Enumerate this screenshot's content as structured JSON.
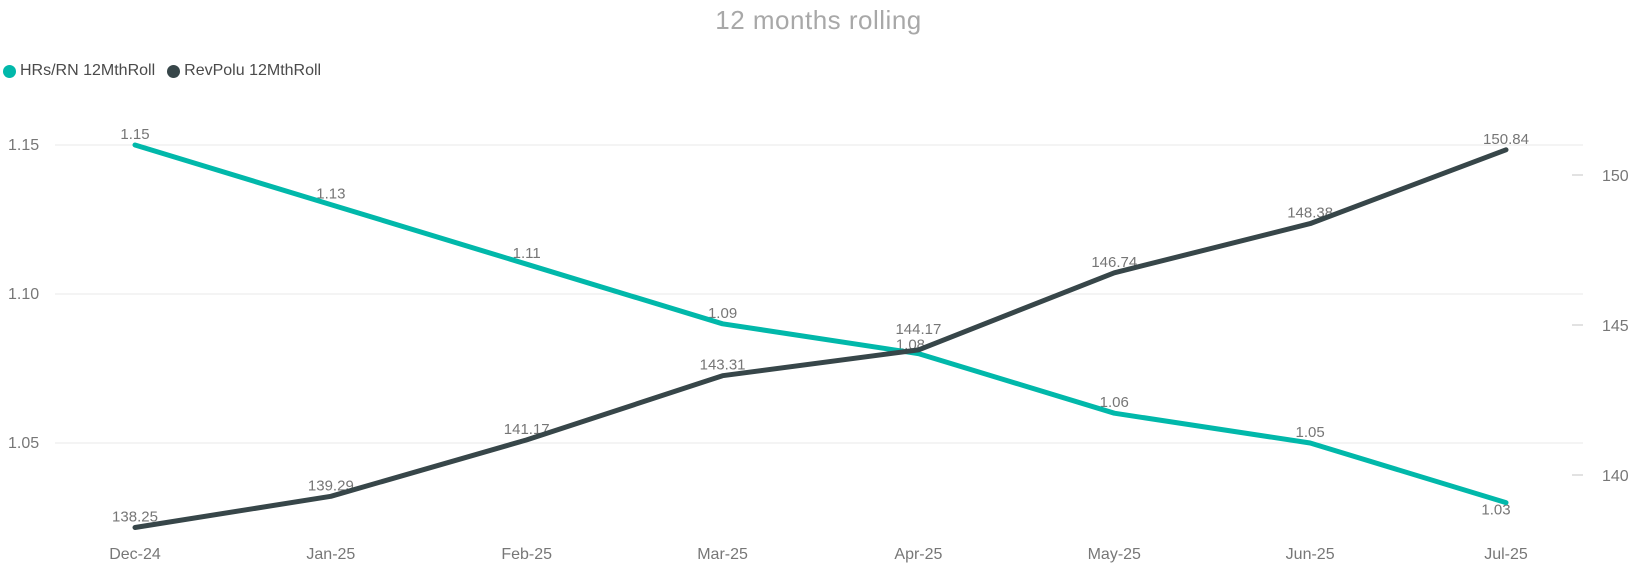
{
  "title": "12 months rolling",
  "legend": {
    "position": "top-left",
    "items": [
      {
        "label": "HRs/RN 12MthRoll",
        "color": "#01B8AA"
      },
      {
        "label": "RevPolu 12MthRoll",
        "color": "#374649"
      }
    ]
  },
  "chart_data": {
    "type": "line",
    "title": "12 months rolling",
    "categories": [
      "Dec-24",
      "Jan-25",
      "Feb-25",
      "Mar-25",
      "Apr-25",
      "May-25",
      "Jun-25",
      "Jul-25"
    ],
    "series": [
      {
        "name": "HRs/RN 12MthRoll",
        "color": "#01B8AA",
        "axis": "left",
        "values": [
          1.15,
          1.13,
          1.11,
          1.09,
          1.08,
          1.06,
          1.05,
          1.03
        ]
      },
      {
        "name": "RevPolu 12MthRoll",
        "color": "#374649",
        "axis": "right",
        "values": [
          138.25,
          139.29,
          141.17,
          143.31,
          144.17,
          146.74,
          148.38,
          150.84
        ]
      }
    ],
    "left_axis": {
      "tick_labels": [
        "1.15",
        "1.10",
        "1.05"
      ],
      "tick_values": [
        1.15,
        1.1,
        1.05
      ],
      "range_shown": [
        1.05,
        1.15
      ]
    },
    "right_axis": {
      "tick_labels": [
        "150",
        "145",
        "140"
      ],
      "tick_values": [
        150,
        145,
        140
      ],
      "range_shown": [
        140,
        150
      ]
    },
    "grid": true,
    "data_labels": true,
    "legend_position": "top-left"
  },
  "colors": {
    "background": "#FFFFFF",
    "series_teal": "#01B8AA",
    "series_dark": "#374649",
    "title_text": "#A8A8A8",
    "axis_text": "#777777",
    "data_label_text": "#767676",
    "gridline": "#E8E8E8",
    "right_tick_dash": "#D9D9D9"
  }
}
